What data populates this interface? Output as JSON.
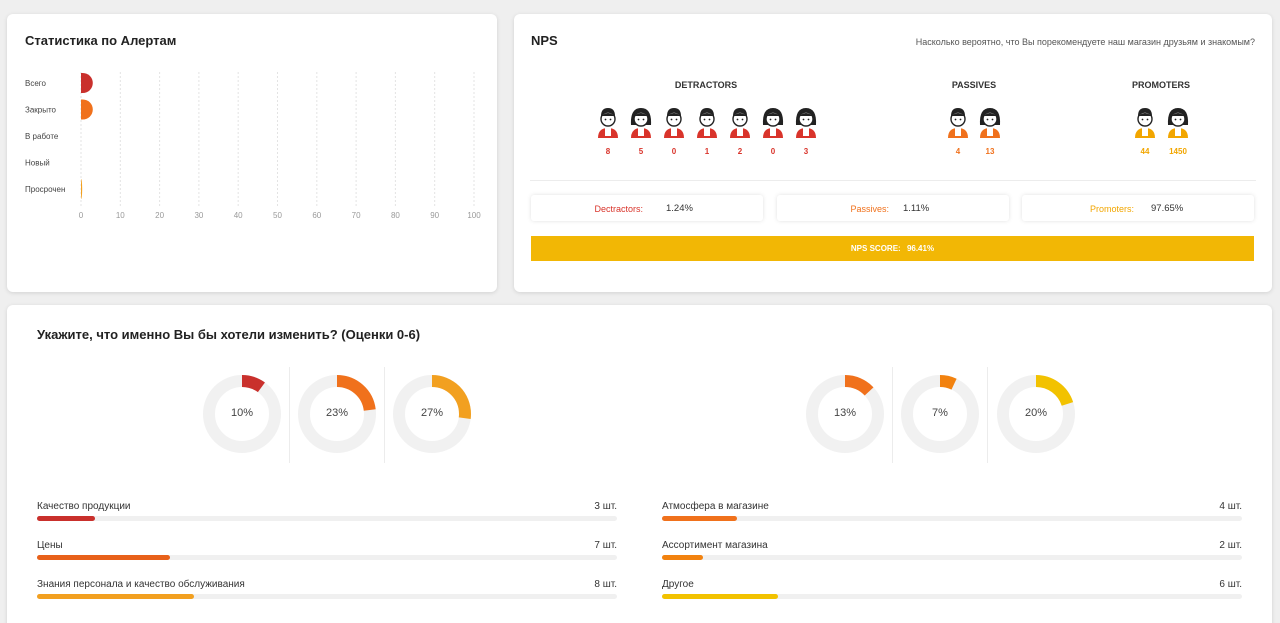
{
  "alerts": {
    "title": "Статистика по Алертам",
    "chart_data": {
      "type": "bar",
      "orientation": "horizontal",
      "categories": [
        "Всего",
        "Закрыто",
        "В работе",
        "Новый",
        "Просрочен"
      ],
      "values": [
        3,
        3,
        0,
        0,
        0.3
      ],
      "colors": [
        "#c9302c",
        "#f0711c",
        "#cccccc",
        "#cccccc",
        "#f2a020"
      ],
      "xlim": [
        0,
        100
      ],
      "x_ticks": [
        0,
        10,
        20,
        30,
        40,
        50,
        60,
        70,
        80,
        90,
        100
      ],
      "grid": true
    }
  },
  "nps": {
    "title": "NPS",
    "question": "Насколько вероятно, что Вы порекомендуете наш магазин друзьям и знакомым?",
    "groups": {
      "detractors": {
        "label": "DETRACTORS",
        "color": "#d9342b",
        "counts": [
          "8",
          "5",
          "0",
          "1",
          "2",
          "0",
          "3"
        ]
      },
      "passives": {
        "label": "PASSIVES",
        "color": "#f0711c",
        "counts": [
          "4",
          "13"
        ]
      },
      "promoters": {
        "label": "PROMOTERS",
        "color": "#f2a600",
        "counts": [
          "44",
          "1450"
        ]
      }
    },
    "summary": {
      "detractors": {
        "label": "Dectractors:",
        "value": "1.24%"
      },
      "passives": {
        "label": "Passives:",
        "value": "1.11%"
      },
      "promoters": {
        "label": "Promoters:",
        "value": "97.65%"
      }
    },
    "score": {
      "label": "NPS SCORE:",
      "value": "96.41%"
    }
  },
  "change": {
    "title": "Укажите, что именно Вы бы хотели изменить? (Оценки 0-6)",
    "donuts": [
      {
        "value": 10,
        "label": "10%",
        "color": "#c9302c"
      },
      {
        "value": 23,
        "label": "23%",
        "color": "#f0711c"
      },
      {
        "value": 27,
        "label": "27%",
        "color": "#f2a020"
      },
      {
        "value": 13,
        "label": "13%",
        "color": "#f0711c"
      },
      {
        "value": 7,
        "label": "7%",
        "color": "#f2820f"
      },
      {
        "value": 20,
        "label": "20%",
        "color": "#f2c200"
      }
    ],
    "bars_left": [
      {
        "name": "Качество продукции",
        "count": "3 шт.",
        "fraction": 0.1,
        "color": "#c9302c"
      },
      {
        "name": "Цены",
        "count": "7 шт.",
        "fraction": 0.23,
        "color": "#e8611a"
      },
      {
        "name": "Знания персонала и качество обслуживания",
        "count": "8 шт.",
        "fraction": 0.27,
        "color": "#f2a020"
      }
    ],
    "bars_right": [
      {
        "name": "Атмосфера в магазине",
        "count": "4 шт.",
        "fraction": 0.13,
        "color": "#f0711c"
      },
      {
        "name": "Ассортимент магазина",
        "count": "2 шт.",
        "fraction": 0.07,
        "color": "#f2820f"
      },
      {
        "name": "Другое",
        "count": "6 шт.",
        "fraction": 0.2,
        "color": "#f2c200"
      }
    ]
  }
}
